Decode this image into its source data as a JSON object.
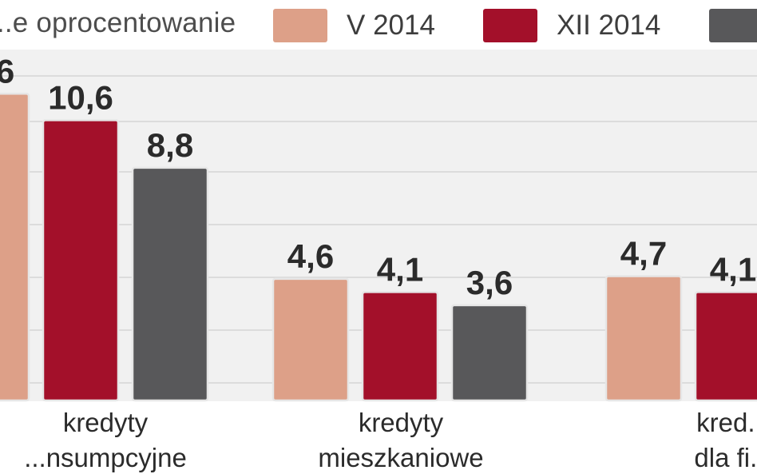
{
  "legend": {
    "title": "...e oprocentowanie",
    "items": [
      {
        "label": "V 2014",
        "color": "#dda088"
      },
      {
        "label": "XII 2014",
        "color": "#a3102a"
      },
      {
        "label": "",
        "color": "#58585a"
      }
    ]
  },
  "chart_data": {
    "type": "bar",
    "categories": [
      "kredyty konsumpcyjne",
      "kredyty mieszkaniowe",
      "kredyty dla firm"
    ],
    "category_lines": [
      [
        "kredyty",
        "...nsumpcyjne"
      ],
      [
        "kredyty",
        "mieszkaniowe"
      ],
      [
        "kred...",
        "dla fi..."
      ]
    ],
    "series": [
      {
        "name": "V 2014",
        "color": "#dda088",
        "values": [
          11.6,
          4.6,
          4.7
        ],
        "labels": [
          "...6",
          "4,6",
          "4,7"
        ]
      },
      {
        "name": "XII 2014",
        "color": "#a3102a",
        "values": [
          10.6,
          4.1,
          4.1
        ],
        "labels": [
          "10,6",
          "4,1",
          "4,1"
        ]
      },
      {
        "name": "",
        "color": "#58585a",
        "values": [
          8.8,
          3.6,
          null
        ],
        "labels": [
          "8,8",
          "3,6",
          ""
        ]
      }
    ],
    "ylim": [
      0,
      12
    ],
    "grid": true,
    "legend_position": "top",
    "xlabel": "",
    "ylabel": ""
  }
}
